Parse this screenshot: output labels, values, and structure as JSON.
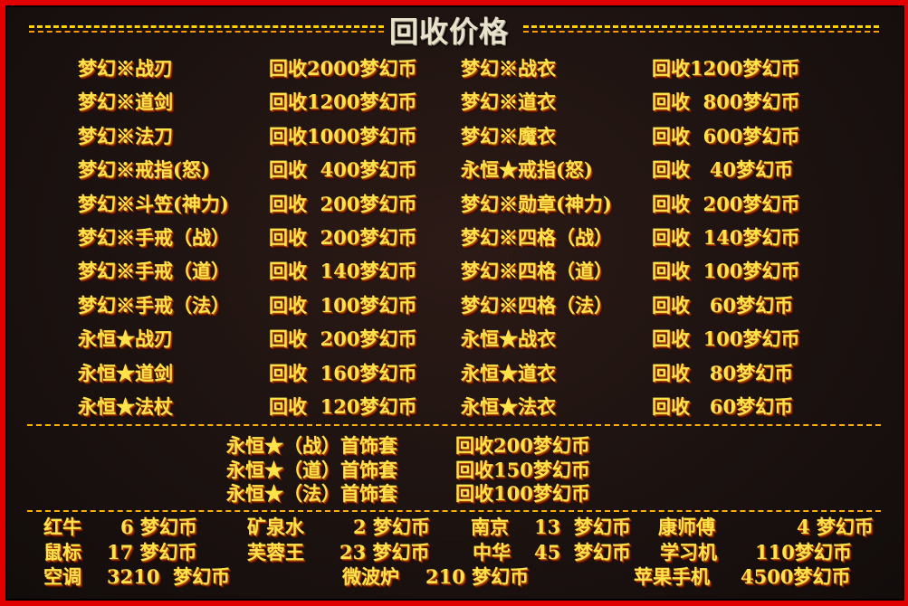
{
  "title": "回收价格",
  "main_rows": [
    [
      "梦幻※战刃",
      "回收2000梦幻币",
      "梦幻※战衣",
      "回收1200梦幻币"
    ],
    [
      "梦幻※道剑",
      "回收1200梦幻币",
      "梦幻※道衣",
      "回收  800梦幻币"
    ],
    [
      "梦幻※法刀",
      "回收1000梦幻币",
      "梦幻※魔衣",
      "回收  600梦幻币"
    ],
    [
      "梦幻※戒指(怒)",
      "回收  400梦幻币",
      "永恒★戒指(怒)",
      "回收   40梦幻币"
    ],
    [
      "梦幻※斗笠(神力)",
      "回收  200梦幻币",
      "梦幻※勋章(神力)",
      "回收  200梦幻币"
    ],
    [
      "梦幻※手戒（战）",
      "回收  200梦幻币",
      "梦幻※四格（战）",
      "回收  140梦幻币"
    ],
    [
      "梦幻※手戒（道）",
      "回收  140梦幻币",
      "梦幻※四格（道）",
      "回收  100梦幻币"
    ],
    [
      "梦幻※手戒（法）",
      "回收  100梦幻币",
      "梦幻※四格（法）",
      "回收   60梦幻币"
    ],
    [
      "永恒★战刃",
      "回收  200梦幻币",
      "永恒★战衣",
      "回收  100梦幻币"
    ],
    [
      "永恒★道剑",
      "回收  160梦幻币",
      "永恒★道衣",
      "回收   80梦幻币"
    ],
    [
      "永恒★法杖",
      "回收  120梦幻币",
      "永恒★法衣",
      "回收   60梦幻币"
    ]
  ],
  "sets": [
    [
      "永恒★（战）首饰套",
      "回收200梦幻币"
    ],
    [
      "永恒★（道）首饰套",
      "回收150梦幻币"
    ],
    [
      "永恒★（法）首饰套",
      "回收100梦幻币"
    ]
  ],
  "misc": [
    [
      [
        "红牛",
        "6 梦幻币"
      ],
      [
        "矿泉水",
        "2 梦幻币"
      ],
      [
        "南京",
        "13  梦幻币"
      ],
      [
        "康师傅",
        "4 梦幻币"
      ]
    ],
    [
      [
        "鼠标",
        "17 梦幻币"
      ],
      [
        "芙蓉王",
        "23 梦幻币"
      ],
      [
        "中华",
        "45  梦幻币"
      ],
      [
        "学习机",
        "110梦幻币"
      ]
    ],
    [
      [
        "空调",
        "3210  梦幻币"
      ],
      [
        "微波炉",
        "210 梦幻币"
      ],
      [
        "苹果手机",
        "4500梦幻币"
      ]
    ]
  ]
}
